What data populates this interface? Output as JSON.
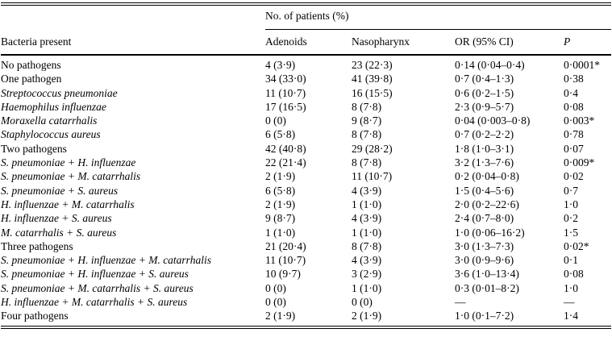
{
  "table": {
    "spanner_header": "No. of patients (%)",
    "columns": {
      "label": "Bacteria present",
      "adenoids": "Adenoids",
      "nasopharynx": "Nasopharynx",
      "or_ci": "OR (95% CI)",
      "p": "P"
    },
    "rows": [
      {
        "label": "No pathogens",
        "italic": false,
        "adenoids": "4 (3·9)",
        "nasopharynx": "23 (22·3)",
        "or_ci": "0·14 (0·04–0·4)",
        "p": "0·0001*"
      },
      {
        "label": "One pathogen",
        "italic": false,
        "adenoids": "34 (33·0)",
        "nasopharynx": "41 (39·8)",
        "or_ci": "0·7 (0·4–1·3)",
        "p": "0·38"
      },
      {
        "label": "Streptococcus pneumoniae",
        "italic": true,
        "adenoids": "11 (10·7)",
        "nasopharynx": "16 (15·5)",
        "or_ci": "0·6 (0·2–1·5)",
        "p": "0·4"
      },
      {
        "label": "Haemophilus influenzae",
        "italic": true,
        "adenoids": "17 (16·5)",
        "nasopharynx": "8 (7·8)",
        "or_ci": "2·3 (0·9–5·7)",
        "p": "0·08"
      },
      {
        "label": "Moraxella catarrhalis",
        "italic": true,
        "adenoids": "0 (0)",
        "nasopharynx": "9 (8·7)",
        "or_ci": "0·04 (0·003–0·8)",
        "p": "0·003*"
      },
      {
        "label": "Staphylococcus aureus",
        "italic": true,
        "adenoids": "6 (5·8)",
        "nasopharynx": "8 (7·8)",
        "or_ci": "0·7 (0·2–2·2)",
        "p": "0·78"
      },
      {
        "label": "Two pathogens",
        "italic": false,
        "adenoids": "42 (40·8)",
        "nasopharynx": "29 (28·2)",
        "or_ci": "1·8 (1·0–3·1)",
        "p": "0·07"
      },
      {
        "label": "S. pneumoniae + H. influenzae",
        "italic": true,
        "adenoids": "22 (21·4)",
        "nasopharynx": "8 (7·8)",
        "or_ci": "3·2 (1·3–7·6)",
        "p": "0·009*"
      },
      {
        "label": "S. pneumoniae + M. catarrhalis",
        "italic": true,
        "adenoids": "2 (1·9)",
        "nasopharynx": "11 (10·7)",
        "or_ci": "0·2 (0·04–0·8)",
        "p": "0·02"
      },
      {
        "label": "S. pneumoniae + S. aureus",
        "italic": true,
        "adenoids": "6 (5·8)",
        "nasopharynx": "4 (3·9)",
        "or_ci": "1·5 (0·4–5·6)",
        "p": "0·7"
      },
      {
        "label": "H. influenzae + M. catarrhalis",
        "italic": true,
        "adenoids": "2 (1·9)",
        "nasopharynx": "1 (1·0)",
        "or_ci": "2·0 (0·2–22·6)",
        "p": "1·0"
      },
      {
        "label": "H. influenzae + S. aureus",
        "italic": true,
        "adenoids": "9 (8·7)",
        "nasopharynx": "4 (3·9)",
        "or_ci": "2·4 (0·7–8·0)",
        "p": "0·2"
      },
      {
        "label": "M. catarrhalis + S. aureus",
        "italic": true,
        "adenoids": "1 (1·0)",
        "nasopharynx": "1 (1·0)",
        "or_ci": "1·0 (0·06–16·2)",
        "p": "1·5"
      },
      {
        "label": "Three pathogens",
        "italic": false,
        "adenoids": "21 (20·4)",
        "nasopharynx": "8 (7·8)",
        "or_ci": "3·0 (1·3–7·3)",
        "p": "0·02*"
      },
      {
        "label": "S. pneumoniae + H. influenzae + M. catarrhalis",
        "italic": true,
        "adenoids": "11 (10·7)",
        "nasopharynx": "4 (3·9)",
        "or_ci": "3·0 (0·9–9·6)",
        "p": "0·1"
      },
      {
        "label": "S. pneumoniae + H. influenzae + S. aureus",
        "italic": true,
        "adenoids": "10 (9·7)",
        "nasopharynx": "3 (2·9)",
        "or_ci": "3·6 (1·0–13·4)",
        "p": "0·08"
      },
      {
        "label": "S. pneumoniae + M. catarrhalis + S. aureus",
        "italic": true,
        "adenoids": "0 (0)",
        "nasopharynx": "1 (1·0)",
        "or_ci": "0·3 (0·01–8·2)",
        "p": "1·0"
      },
      {
        "label": "H. influenzae + M. catarrhalis + S. aureus",
        "italic": true,
        "adenoids": "0 (0)",
        "nasopharynx": "0 (0)",
        "or_ci": "—",
        "p": "—"
      },
      {
        "label": "Four pathogens",
        "italic": false,
        "adenoids": "2 (1·9)",
        "nasopharynx": "2 (1·9)",
        "or_ci": "1·0 (0·1–7·2)",
        "p": "1·4"
      }
    ]
  }
}
